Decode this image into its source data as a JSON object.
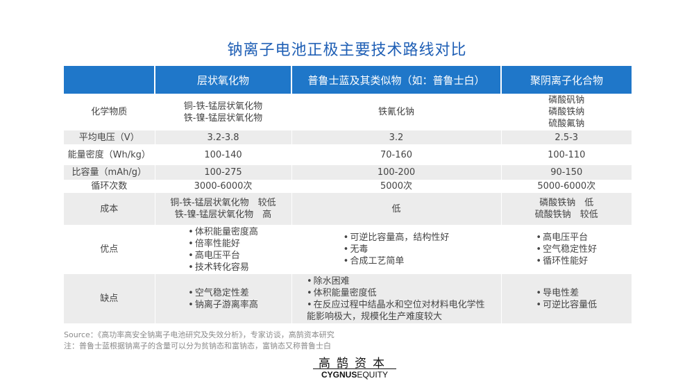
{
  "title": "钠离子电池正极主要技术路线对比",
  "columns": [
    "",
    "层状氧化物",
    "普鲁士蓝及其类似物（如：普鲁士白）",
    "聚阴离子化合物"
  ],
  "rows": {
    "chem": {
      "label": "化学物质",
      "c1": [
        "铜-铁-锰层状氧化物",
        "铁-镍-锰层状氧化物"
      ],
      "c2": [
        "铁氰化钠"
      ],
      "c3": [
        "磷酸矾钠",
        "磷酸铁纳",
        "硫酸氟钠"
      ]
    },
    "voltage": {
      "label": "平均电压（V）",
      "c1": "3.2-3.8",
      "c2": "3.2",
      "c3": "2.5-3"
    },
    "energy": {
      "label": "能量密度（Wh/kg）",
      "c1": "100-140",
      "c2": "70-160",
      "c3": "100-110"
    },
    "capacity": {
      "label": "比容量（mAh/g）",
      "c1": "100-275",
      "c2": "100-200",
      "c3": "90-150"
    },
    "cycles": {
      "label": "循环次数",
      "c1": "3000-6000次",
      "c2": "5000次",
      "c3": "5000-6000次"
    },
    "cost": {
      "label": "成本",
      "c1": [
        "铜-铁-锰层状氧化物　较低",
        "铁-镍-锰层状氧化物　高"
      ],
      "c2": [
        "低"
      ],
      "c3": [
        "磷酸铁钠　低",
        "硫酸铁钠　较低"
      ]
    },
    "pros": {
      "label": "优点",
      "c1": [
        "体积能量密度高",
        "倍率性能好",
        "高电压平台",
        "技术转化容易"
      ],
      "c2": [
        "可逆比容量高，结构性好",
        "无毒",
        "合成工艺简单"
      ],
      "c3": [
        "高电压平台",
        "空气稳定性好",
        "循环性能好"
      ]
    },
    "cons": {
      "label": "缺点",
      "c1": [
        "空气稳定性差",
        "钠离子游离率高"
      ],
      "c2": [
        "除水困难",
        "体积能量密度低",
        "在反应过程中结晶水和空位对材料电化学性能影响极大，规模化生产难度较大"
      ],
      "c3": [
        "导电性差",
        "可逆比容量低"
      ]
    }
  },
  "source": "Source：《高功率高安全钠离子电池研究及失效分析》，专家访谈，高鹄资本研究",
  "footnote": "注：普鲁士蓝根据钠离子的含量可以分为贫钠态和富钠态，富钠态又称普鲁士白",
  "logo": {
    "cn": "高鹄资本",
    "en_bold": "CYGNUS",
    "en_regular": "EQUITY"
  }
}
